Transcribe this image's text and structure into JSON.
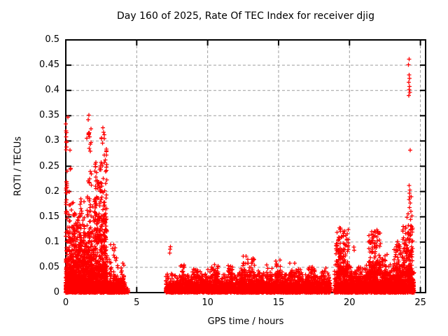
{
  "chart_data": {
    "type": "scatter",
    "title": "Day 160 of 2025, Rate Of TEC Index for receiver djig",
    "xlabel": "GPS time / hours",
    "ylabel": "ROTI / TECUs",
    "xlim": [
      0,
      25.4
    ],
    "ylim": [
      0,
      0.5
    ],
    "xticks": [
      0,
      5,
      10,
      15,
      20,
      25
    ],
    "xtick_labels": [
      "0",
      "5",
      "10",
      "15",
      "20",
      "25"
    ],
    "yticks": [
      0,
      0.05,
      0.1,
      0.15,
      0.2,
      0.25,
      0.3,
      0.35,
      0.4,
      0.45,
      0.5
    ],
    "ytick_labels": [
      "0",
      "0.05",
      "0.1",
      "0.15",
      "0.2",
      "0.25",
      "0.3",
      "0.35",
      "0.4",
      "0.45",
      "0.5"
    ],
    "grid": true,
    "legend": null,
    "marker": {
      "shape": "plus",
      "size": 7,
      "color": "#ff0000"
    },
    "colors": {
      "marker": "#ff0000",
      "grid": "#9e9e9e",
      "axis": "#000000",
      "background": "#ffffff"
    },
    "random_seed": 7,
    "dense_segments": [
      {
        "t0": 0.0,
        "t1": 2.95,
        "n": 1500,
        "mean": 0.016,
        "cap": 0.09
      },
      {
        "t0": 0.0,
        "t1": 2.92,
        "n": 560,
        "mean": 0.05,
        "cap": 0.155,
        "v0": 0.03
      },
      {
        "t0": 2.95,
        "t1": 4.18,
        "n": 520,
        "mean": 0.0075,
        "cap": 0.034
      },
      {
        "t0": 4.18,
        "t1": 4.42,
        "n": 26,
        "mean": 0.004,
        "cap": 0.015
      },
      {
        "t0": 7.05,
        "t1": 18.65,
        "n": 3600,
        "mean": 0.011,
        "cap": 0.046
      },
      {
        "t0": 18.95,
        "t1": 24.55,
        "n": 2300,
        "mean": 0.014,
        "cap": 0.056
      }
    ],
    "clusters": [
      {
        "t0": 0.0,
        "t1": 0.08,
        "n": 16,
        "vmin": 0.15,
        "vmax": 0.26,
        "pow": 1.2
      },
      {
        "t0": 0.0,
        "t1": 0.06,
        "n": 8,
        "vmin": 0.28,
        "vmax": 0.335,
        "pow": 1.0
      },
      {
        "t0": 0.08,
        "t1": 0.4,
        "n": 22,
        "vmin": 0.1,
        "vmax": 0.3,
        "pow": 2.0
      },
      {
        "t0": 0.4,
        "t1": 1.0,
        "n": 55,
        "vmin": 0.04,
        "vmax": 0.16,
        "pow": 2.0
      },
      {
        "t0": 1.0,
        "t1": 1.35,
        "n": 38,
        "vmin": 0.05,
        "vmax": 0.2,
        "pow": 2.0
      },
      {
        "t0": 1.45,
        "t1": 1.85,
        "n": 55,
        "vmin": 0.07,
        "vmax": 0.33,
        "pow": 1.8
      },
      {
        "t0": 2.0,
        "t1": 2.55,
        "n": 100,
        "vmin": 0.1,
        "vmax": 0.26,
        "pow": 1.6
      },
      {
        "t0": 2.5,
        "t1": 2.9,
        "n": 65,
        "vmin": 0.1,
        "vmax": 0.315,
        "pow": 1.7
      },
      {
        "t0": 3.05,
        "t1": 3.7,
        "n": 40,
        "vmin": 0.02,
        "vmax": 0.1,
        "pow": 1.8
      },
      {
        "t0": 3.85,
        "t1": 4.12,
        "n": 16,
        "vmin": 0.015,
        "vmax": 0.06,
        "pow": 1.5
      },
      {
        "t0": 8.0,
        "t1": 8.35,
        "n": 16,
        "vmin": 0.03,
        "vmax": 0.055,
        "pow": 1.5
      },
      {
        "t0": 9.0,
        "t1": 9.4,
        "n": 12,
        "vmin": 0.03,
        "vmax": 0.05,
        "pow": 1.5
      },
      {
        "t0": 10.25,
        "t1": 10.75,
        "n": 20,
        "vmin": 0.03,
        "vmax": 0.06,
        "pow": 1.5
      },
      {
        "t0": 11.35,
        "t1": 11.75,
        "n": 13,
        "vmin": 0.03,
        "vmax": 0.055,
        "pow": 1.5
      },
      {
        "t0": 12.35,
        "t1": 13.4,
        "n": 50,
        "vmin": 0.03,
        "vmax": 0.073,
        "pow": 1.8
      },
      {
        "t0": 14.15,
        "t1": 14.55,
        "n": 13,
        "vmin": 0.03,
        "vmax": 0.055,
        "pow": 1.5
      },
      {
        "t0": 14.8,
        "t1": 15.15,
        "n": 16,
        "vmin": 0.03,
        "vmax": 0.066,
        "pow": 1.5
      },
      {
        "t0": 15.75,
        "t1": 16.45,
        "n": 20,
        "vmin": 0.03,
        "vmax": 0.06,
        "pow": 1.5
      },
      {
        "t0": 17.05,
        "t1": 17.65,
        "n": 20,
        "vmin": 0.03,
        "vmax": 0.058,
        "pow": 1.5
      },
      {
        "t0": 18.0,
        "t1": 18.35,
        "n": 11,
        "vmin": 0.03,
        "vmax": 0.05,
        "pow": 1.5
      },
      {
        "t0": 19.05,
        "t1": 19.95,
        "n": 150,
        "vmin": 0.035,
        "vmax": 0.128,
        "pow": 2.0
      },
      {
        "t0": 21.35,
        "t1": 22.2,
        "n": 120,
        "vmin": 0.035,
        "vmax": 0.124,
        "pow": 2.0
      },
      {
        "t0": 22.25,
        "t1": 22.65,
        "n": 32,
        "vmin": 0.03,
        "vmax": 0.08,
        "pow": 1.8
      },
      {
        "t0": 23.1,
        "t1": 23.6,
        "n": 60,
        "vmin": 0.03,
        "vmax": 0.1,
        "pow": 1.9
      },
      {
        "t0": 23.7,
        "t1": 24.45,
        "n": 150,
        "vmin": 0.035,
        "vmax": 0.133,
        "pow": 1.9
      }
    ],
    "outliers": [
      [
        0.14,
        0.347
      ],
      [
        1.62,
        0.351
      ],
      [
        1.58,
        0.342
      ],
      [
        1.67,
        0.308
      ],
      [
        2.62,
        0.326
      ],
      [
        2.67,
        0.317
      ],
      [
        2.6,
        0.296
      ],
      [
        7.33,
        0.078
      ],
      [
        7.35,
        0.086
      ],
      [
        7.37,
        0.091
      ],
      [
        20.3,
        0.09
      ],
      [
        20.34,
        0.084
      ],
      [
        19.3,
        0.128
      ],
      [
        19.38,
        0.121
      ],
      [
        21.94,
        0.124
      ],
      [
        22.02,
        0.117
      ],
      [
        23.4,
        0.101
      ],
      [
        24.15,
        0.133
      ],
      [
        24.2,
        0.462
      ],
      [
        24.16,
        0.451
      ],
      [
        24.21,
        0.431
      ],
      [
        24.24,
        0.424
      ],
      [
        24.19,
        0.416
      ],
      [
        24.23,
        0.408
      ],
      [
        24.2,
        0.402
      ],
      [
        24.25,
        0.396
      ],
      [
        24.18,
        0.39
      ],
      [
        24.27,
        0.282
      ],
      [
        24.21,
        0.212
      ],
      [
        24.25,
        0.203
      ],
      [
        24.22,
        0.197
      ],
      [
        24.26,
        0.19
      ],
      [
        24.2,
        0.184
      ],
      [
        24.28,
        0.177
      ],
      [
        24.24,
        0.168
      ],
      [
        24.12,
        0.156
      ],
      [
        24.06,
        0.149
      ],
      [
        24.31,
        0.145
      ],
      [
        24.36,
        0.19
      ],
      [
        24.33,
        0.161
      ],
      [
        24.4,
        0.152
      ]
    ]
  }
}
